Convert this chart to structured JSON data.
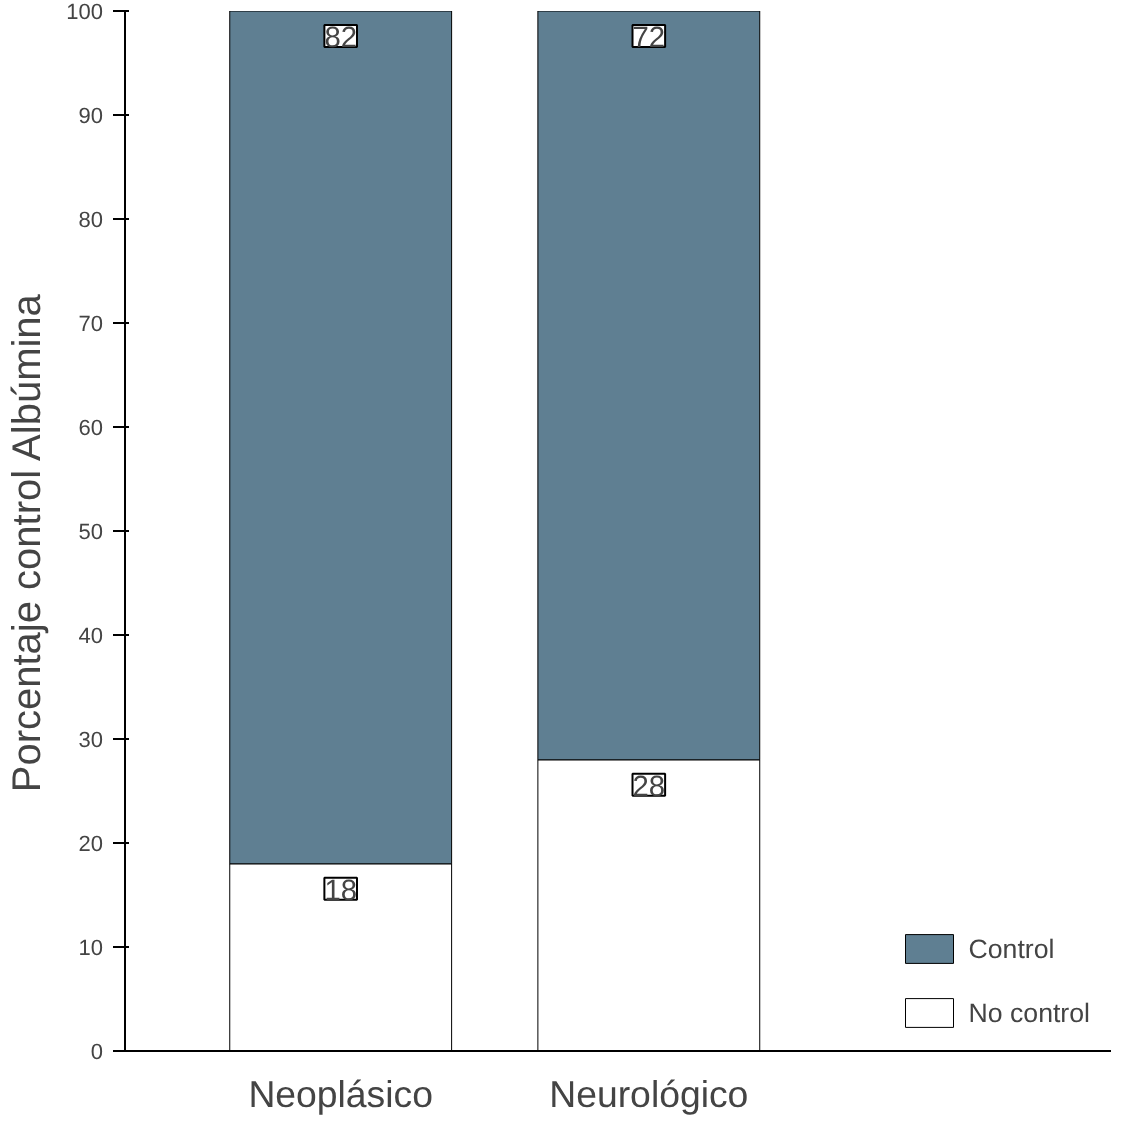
{
  "chart_data": {
    "type": "bar",
    "stacked": true,
    "ylabel": "Porcentaje control   Albúmina",
    "categories": [
      "Neoplásico",
      "Neurológico"
    ],
    "series": [
      {
        "name": "No control",
        "color": "#ffffff",
        "values": [
          18,
          28
        ]
      },
      {
        "name": "Control",
        "color": "#5f7f92",
        "values": [
          82,
          72
        ]
      }
    ],
    "ylim": [
      0,
      100
    ],
    "yticks": [
      0,
      10,
      20,
      30,
      40,
      50,
      60,
      70,
      80,
      90,
      100
    ],
    "data_labels": true,
    "legend": "bottom right",
    "grid": false
  }
}
